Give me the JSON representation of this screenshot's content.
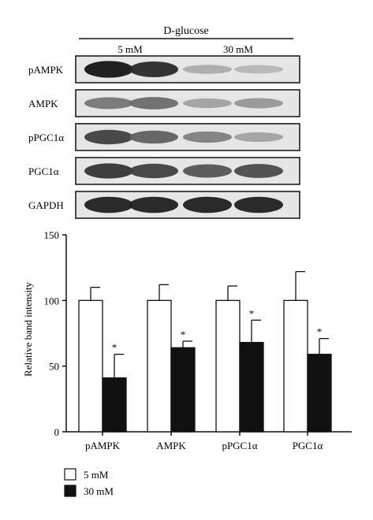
{
  "blot": {
    "treatment_label": "D-glucose",
    "groups": [
      "5 mM",
      "30 mM"
    ],
    "rows": [
      {
        "label": "pAMPK",
        "intensity": [
          0.95,
          0.85,
          0.25,
          0.2
        ]
      },
      {
        "label": "AMPK",
        "intensity": [
          0.5,
          0.55,
          0.3,
          0.35
        ]
      },
      {
        "label": "pPGC1α",
        "intensity": [
          0.75,
          0.6,
          0.45,
          0.3
        ]
      },
      {
        "label": "PGC1α",
        "intensity": [
          0.8,
          0.75,
          0.65,
          0.7
        ]
      },
      {
        "label": "GAPDH",
        "intensity": [
          0.9,
          0.9,
          0.9,
          0.9
        ]
      }
    ]
  },
  "chart_data": {
    "type": "bar",
    "categories": [
      "pAMPK",
      "AMPK",
      "pPGC1α",
      "PGC1α"
    ],
    "series": [
      {
        "name": "5 mM",
        "values": [
          100,
          100,
          100,
          100
        ],
        "errors": [
          10,
          12,
          11,
          22
        ],
        "color": "#ffffff"
      },
      {
        "name": "30 mM",
        "values": [
          41,
          64,
          68,
          59
        ],
        "errors": [
          18,
          5,
          17,
          12
        ],
        "color": "#111111"
      }
    ],
    "significance": [
      "*",
      "*",
      "*",
      "*"
    ],
    "ylabel": "Relative band intensity",
    "ylim": [
      0,
      150
    ],
    "yticks": [
      0,
      50,
      100,
      150
    ],
    "legend_position": "bottom-left"
  }
}
